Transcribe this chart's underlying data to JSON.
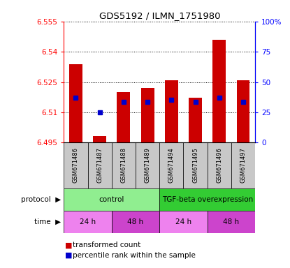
{
  "title": "GDS5192 / ILMN_1751980",
  "samples": [
    "GSM671486",
    "GSM671487",
    "GSM671488",
    "GSM671489",
    "GSM671494",
    "GSM671495",
    "GSM671496",
    "GSM671497"
  ],
  "bar_tops": [
    6.534,
    6.498,
    6.52,
    6.522,
    6.526,
    6.517,
    6.546,
    6.526
  ],
  "bar_bottom": 6.495,
  "blue_dot_values": [
    6.517,
    6.51,
    6.515,
    6.515,
    6.516,
    6.515,
    6.517,
    6.515
  ],
  "ylim": [
    6.495,
    6.555
  ],
  "yticks": [
    6.495,
    6.51,
    6.525,
    6.54,
    6.555
  ],
  "right_yticks": [
    0,
    25,
    50,
    75,
    100
  ],
  "right_ytick_labels": [
    "0",
    "25",
    "50",
    "75",
    "100%"
  ],
  "bar_color": "#cc0000",
  "dot_color": "#0000cc",
  "protocol_control_color": "#90ee90",
  "protocol_tgf_color": "#33cc33",
  "time_24h_color": "#ee82ee",
  "time_48h_color": "#cc44cc",
  "sample_bg_color": "#c8c8c8",
  "protocol_row": [
    {
      "label": "control",
      "start": 0,
      "end": 4
    },
    {
      "label": "TGF-beta overexpression",
      "start": 4,
      "end": 8
    }
  ],
  "time_row": [
    {
      "label": "24 h",
      "start": 0,
      "end": 2
    },
    {
      "label": "48 h",
      "start": 2,
      "end": 4
    },
    {
      "label": "24 h",
      "start": 4,
      "end": 6
    },
    {
      "label": "48 h",
      "start": 6,
      "end": 8
    }
  ],
  "legend_items": [
    {
      "color": "#cc0000",
      "label": "transformed count"
    },
    {
      "color": "#0000cc",
      "label": "percentile rank within the sample"
    }
  ]
}
